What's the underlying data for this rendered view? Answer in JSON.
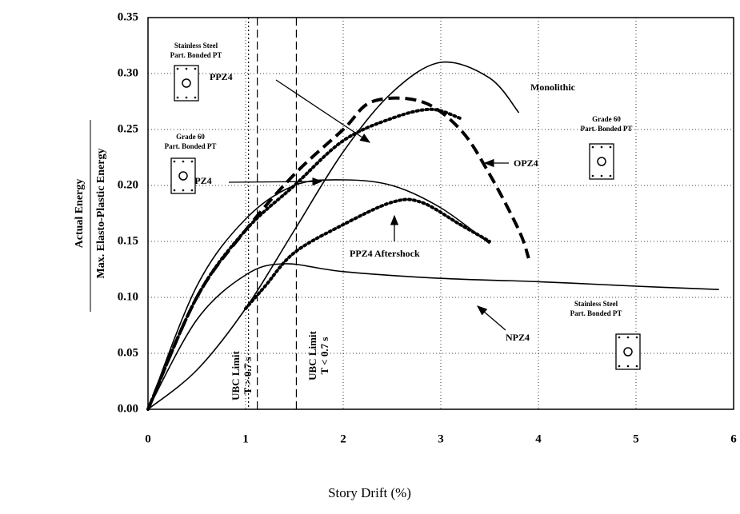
{
  "chart_data": {
    "type": "line",
    "x_label": "Story Drift (%)",
    "y_label_top": "Actual Energy",
    "y_label_bottom": "Max. Elasto-Plastic Energy",
    "xlim": [
      0,
      6
    ],
    "xticks": [
      0,
      1,
      2,
      3,
      4,
      5,
      6
    ],
    "ylim": [
      0,
      0.35
    ],
    "yticks": [
      {
        "value": 0,
        "label": "0.00"
      },
      0.05,
      {
        "value": 0.1,
        "label": "0.10"
      },
      0.15,
      {
        "value": 0.2,
        "label": "0.20"
      },
      0.25,
      {
        "value": 0.3,
        "label": "0.30"
      },
      0.35
    ],
    "grid": true,
    "series": [
      {
        "name": "Monolithic",
        "color": "#000000",
        "style": "solid",
        "x": [
          0,
          0.5,
          1,
          1.5,
          2,
          2.5,
          3,
          3.5,
          3.8
        ],
        "values": [
          0,
          0.035,
          0.09,
          0.16,
          0.23,
          0.283,
          0.31,
          0.296,
          0.265
        ]
      },
      {
        "name": "PPZ4",
        "color": "#000000",
        "style": "dotted",
        "x": [
          0,
          0.5,
          1,
          1.5,
          2,
          2.5,
          2.9,
          3.2
        ],
        "values": [
          0,
          0.1,
          0.16,
          0.2,
          0.24,
          0.26,
          0.268,
          0.26
        ]
      },
      {
        "name": "OPZ4",
        "color": "#000000",
        "style": "dashed",
        "x": [
          0,
          0.5,
          1,
          1.5,
          2,
          2.3,
          2.8,
          3.2,
          3.5,
          3.8,
          3.9
        ],
        "values": [
          0,
          0.1,
          0.16,
          0.21,
          0.25,
          0.275,
          0.275,
          0.25,
          0.21,
          0.16,
          0.135
        ]
      },
      {
        "name": "MPZ4",
        "color": "#000000",
        "style": "solid",
        "x": [
          0,
          0.5,
          1,
          1.5,
          2,
          2.5,
          3,
          3.5
        ],
        "values": [
          0,
          0.11,
          0.17,
          0.2,
          0.205,
          0.2,
          0.18,
          0.148
        ]
      },
      {
        "name": "PPZ4 Aftershock",
        "color": "#000000",
        "style": "dotted",
        "x": [
          1,
          1.2,
          1.5,
          2,
          2.5,
          2.8,
          3.2,
          3.5
        ],
        "values": [
          0.09,
          0.11,
          0.14,
          0.165,
          0.185,
          0.185,
          0.165,
          0.15
        ]
      },
      {
        "name": "NPZ4",
        "color": "#000000",
        "style": "solid",
        "x": [
          0,
          0.5,
          1,
          1.4,
          2,
          3,
          4,
          5,
          5.85
        ],
        "values": [
          0,
          0.08,
          0.12,
          0.13,
          0.123,
          0.117,
          0.114,
          0.11,
          0.107
        ]
      }
    ],
    "reference_lines": [
      {
        "x": 1.03,
        "style": "dotted"
      },
      {
        "x": 1.12,
        "style": "dashed"
      },
      {
        "x": 1.52,
        "style": "dashed"
      }
    ],
    "limit_labels": [
      [
        "UBC Limit",
        "T > 0.7 s"
      ],
      [
        "UBC Limit",
        "T < 0.7 s"
      ]
    ],
    "detail_notes": [
      [
        "Stainless Steel",
        "Part. Bonded PT"
      ],
      [
        "Grade 60",
        "Part. Bonded PT"
      ],
      [
        "Grade 60",
        "Part. Bonded PT"
      ],
      [
        "Stainless Steel",
        "Part. Bonded PT"
      ]
    ]
  }
}
